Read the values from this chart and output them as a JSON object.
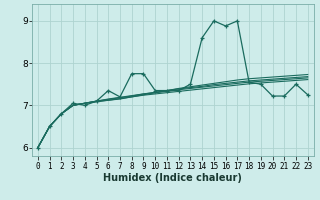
{
  "xlabel": "Humidex (Indice chaleur)",
  "ylabel": "",
  "bg_color": "#ceecea",
  "grid_color": "#aed4d0",
  "line_color": "#1a6b5e",
  "xlim": [
    -0.5,
    23.5
  ],
  "ylim": [
    5.8,
    9.4
  ],
  "yticks": [
    6,
    7,
    8,
    9
  ],
  "xticks": [
    0,
    1,
    2,
    3,
    4,
    5,
    6,
    7,
    8,
    9,
    10,
    11,
    12,
    13,
    14,
    15,
    16,
    17,
    18,
    19,
    20,
    21,
    22,
    23
  ],
  "series": [
    [
      6.0,
      6.5,
      6.8,
      7.05,
      7.0,
      7.1,
      7.35,
      7.2,
      7.75,
      7.75,
      7.35,
      7.35,
      7.35,
      7.5,
      8.6,
      9.0,
      8.88,
      9.0,
      7.55,
      7.5,
      7.22,
      7.22,
      7.5,
      7.25
    ],
    [
      6.0,
      6.5,
      6.8,
      7.0,
      7.05,
      7.1,
      7.12,
      7.15,
      7.2,
      7.25,
      7.3,
      7.35,
      7.4,
      7.44,
      7.48,
      7.52,
      7.56,
      7.6,
      7.63,
      7.65,
      7.67,
      7.69,
      7.71,
      7.73
    ],
    [
      6.0,
      6.5,
      6.8,
      7.0,
      7.05,
      7.1,
      7.14,
      7.18,
      7.22,
      7.27,
      7.31,
      7.35,
      7.39,
      7.42,
      7.45,
      7.49,
      7.52,
      7.55,
      7.58,
      7.6,
      7.62,
      7.64,
      7.66,
      7.68
    ],
    [
      6.0,
      6.5,
      6.8,
      7.0,
      7.05,
      7.1,
      7.15,
      7.19,
      7.23,
      7.27,
      7.3,
      7.33,
      7.37,
      7.4,
      7.43,
      7.46,
      7.49,
      7.52,
      7.55,
      7.57,
      7.59,
      7.61,
      7.63,
      7.65
    ],
    [
      6.0,
      6.5,
      6.8,
      7.0,
      7.05,
      7.08,
      7.12,
      7.16,
      7.2,
      7.24,
      7.27,
      7.3,
      7.33,
      7.36,
      7.39,
      7.42,
      7.45,
      7.48,
      7.51,
      7.53,
      7.55,
      7.57,
      7.59,
      7.61
    ]
  ]
}
